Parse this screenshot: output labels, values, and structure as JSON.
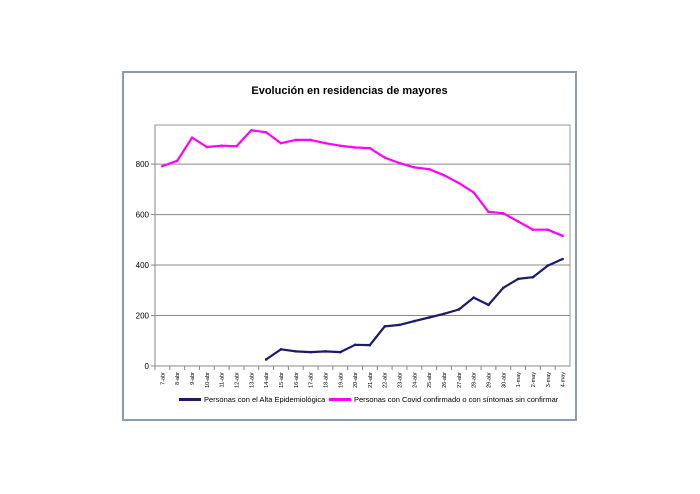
{
  "chart_data": {
    "type": "line",
    "title": "Evolución en residencias de mayores",
    "categories": [
      "7-abr",
      "8-abr",
      "9-abr",
      "10-abr",
      "11-abr",
      "12-abr",
      "13-abr",
      "14-abr",
      "15-abr",
      "16-abr",
      "17-abr",
      "18-abr",
      "19-abr",
      "20-abr",
      "21-abr",
      "22-abr",
      "23-abr",
      "24-abr",
      "25-abr",
      "26-abr",
      "27-abr",
      "28-abr",
      "29-abr",
      "30-abr",
      "1-may",
      "2-may",
      "3-may",
      "4-may"
    ],
    "series": [
      {
        "name": "Personas con el Alta Epidemiológica",
        "color": "#1a1a6e",
        "values": [
          null,
          null,
          null,
          null,
          null,
          null,
          null,
          26,
          66,
          58,
          55,
          58,
          55,
          84,
          83,
          157,
          163,
          178,
          192,
          207,
          224,
          271,
          242,
          310,
          345,
          352,
          398,
          424
        ]
      },
      {
        "name": "Personas con Covid confirmado o con síntomas sin confirmar",
        "color": "#ff00ff",
        "values": [
          792,
          813,
          905,
          868,
          873,
          871,
          934,
          926,
          883,
          896,
          896,
          883,
          873,
          866,
          863,
          826,
          804,
          787,
          780,
          756,
          725,
          688,
          611,
          605,
          573,
          540,
          540,
          516
        ]
      }
    ],
    "yticks": [
      0,
      200,
      400,
      600,
      800
    ],
    "ylim": [
      0,
      955
    ],
    "grid": true,
    "legend": "bottom"
  }
}
